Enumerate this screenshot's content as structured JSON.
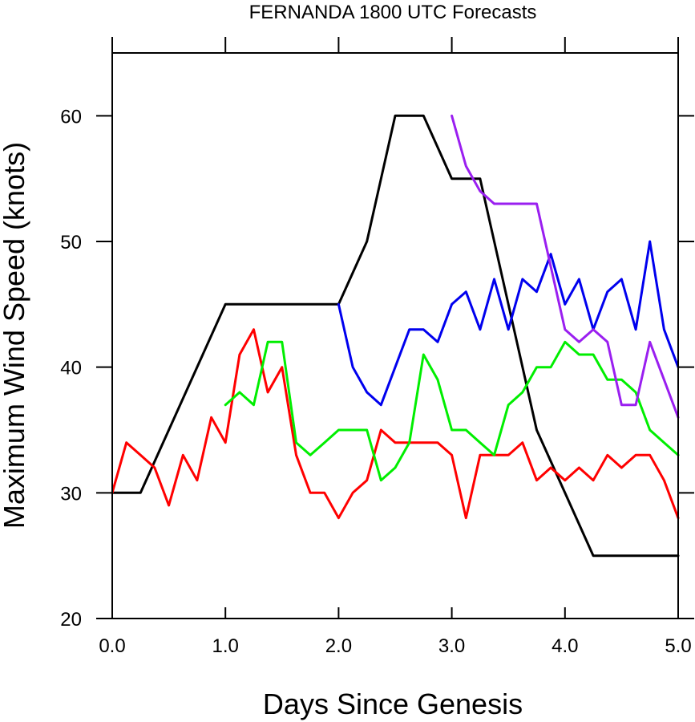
{
  "chart_data": {
    "type": "line",
    "title": "FERNANDA 1800 UTC Forecasts",
    "xlabel": "Days Since Genesis",
    "ylabel": "Maximum Wind Speed (knots)",
    "xlim": [
      0,
      5
    ],
    "ylim": [
      20,
      65
    ],
    "x_ticks": [
      0,
      1,
      2,
      3,
      4,
      5
    ],
    "x_tick_labels": [
      "0.0",
      "1.0",
      "2.0",
      "3.0",
      "4.0",
      "5.0"
    ],
    "y_ticks": [
      20,
      30,
      40,
      50,
      60
    ],
    "y_tick_labels": [
      "20",
      "30",
      "40",
      "50",
      "60"
    ],
    "grid": false,
    "series": [
      {
        "name": "black",
        "color": "#000000",
        "x": [
          0,
          0.25,
          1.0,
          2.0,
          2.25,
          2.5,
          2.75,
          3.0,
          3.25,
          3.5,
          3.75,
          4.0,
          4.25,
          5.0
        ],
        "values": [
          30,
          30,
          45,
          45,
          50,
          60,
          60,
          55,
          55,
          45,
          35,
          30,
          25,
          25
        ]
      },
      {
        "name": "red",
        "color": "#ff0000",
        "x": [
          0,
          0.125,
          0.25,
          0.375,
          0.5,
          0.625,
          0.75,
          0.875,
          1.0,
          1.125,
          1.25,
          1.375,
          1.5,
          1.625,
          1.75,
          1.875,
          2.0,
          2.125,
          2.25,
          2.375,
          2.5,
          2.625,
          2.75,
          2.875,
          3.0,
          3.125,
          3.25,
          3.375,
          3.5,
          3.625,
          3.75,
          3.875,
          4.0,
          4.125,
          4.25,
          4.375,
          4.5,
          4.625,
          4.75,
          4.875,
          5.0
        ],
        "values": [
          30,
          34,
          33,
          32,
          29,
          33,
          31,
          36,
          34,
          41,
          43,
          38,
          40,
          33,
          30,
          30,
          28,
          30,
          31,
          35,
          34,
          34,
          34,
          34,
          33,
          28,
          33,
          33,
          33,
          34,
          31,
          32,
          31,
          32,
          31,
          33,
          32,
          33,
          33,
          31,
          28
        ]
      },
      {
        "name": "green",
        "color": "#00ee00",
        "x": [
          1.0,
          1.125,
          1.25,
          1.375,
          1.5,
          1.625,
          1.75,
          1.875,
          2.0,
          2.125,
          2.25,
          2.375,
          2.5,
          2.625,
          2.75,
          2.875,
          3.0,
          3.125,
          3.25,
          3.375,
          3.5,
          3.625,
          3.75,
          3.875,
          4.0,
          4.125,
          4.25,
          4.375,
          4.5,
          4.625,
          4.75,
          4.875,
          5.0
        ],
        "values": [
          37,
          38,
          37,
          42,
          42,
          34,
          33,
          34,
          35,
          35,
          35,
          31,
          32,
          34,
          41,
          39,
          35,
          35,
          34,
          33,
          37,
          38,
          40,
          40,
          42,
          41,
          41,
          39,
          39,
          38,
          35,
          34,
          33
        ]
      },
      {
        "name": "blue",
        "color": "#0000ee",
        "x": [
          2.0,
          2.125,
          2.25,
          2.375,
          2.5,
          2.625,
          2.75,
          2.875,
          3.0,
          3.125,
          3.25,
          3.375,
          3.5,
          3.625,
          3.75,
          3.875,
          4.0,
          4.125,
          4.25,
          4.375,
          4.5,
          4.625,
          4.75,
          4.875,
          5.0
        ],
        "values": [
          45,
          40,
          38,
          37,
          40,
          43,
          43,
          42,
          45,
          46,
          43,
          47,
          43,
          47,
          46,
          49,
          45,
          47,
          43,
          46,
          47,
          43,
          50,
          43,
          40
        ]
      },
      {
        "name": "purple",
        "color": "#9a1ff0",
        "x": [
          3.0,
          3.125,
          3.25,
          3.375,
          3.5,
          3.625,
          3.75,
          3.875,
          4.0,
          4.125,
          4.25,
          4.375,
          4.5,
          4.625,
          4.75,
          4.875,
          5.0
        ],
        "values": [
          60,
          56,
          54,
          53,
          53,
          53,
          53,
          48,
          43,
          42,
          43,
          42,
          37,
          37,
          42,
          39,
          36
        ]
      }
    ]
  }
}
